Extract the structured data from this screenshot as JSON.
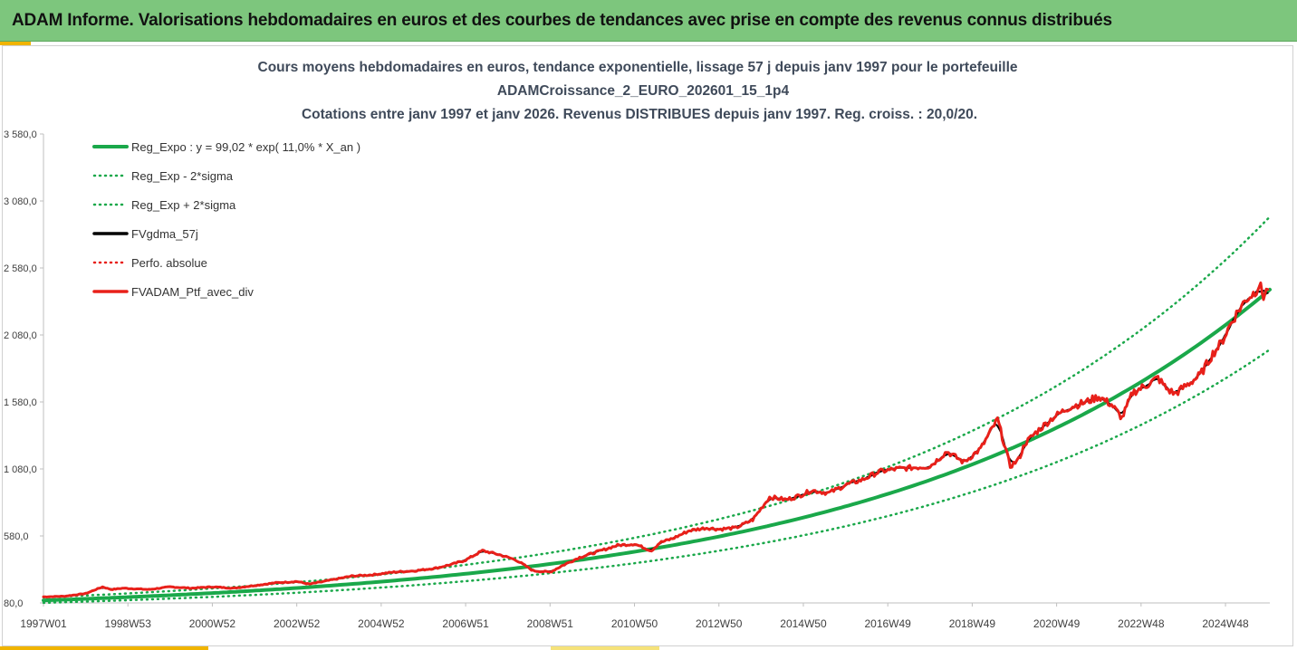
{
  "header": {
    "title": "ADAM Informe. Valorisations hebdomadaires en euros et des courbes de tendances avec prise en compte des revenus connus distribués"
  },
  "chart_data": {
    "type": "line",
    "title": "Cours moyens hebdomadaires  en euros, tendance exponentielle, lissage 57 j depuis janv 1997 pour le portefeuille",
    "title_line2": "ADAMCroissance_2_EURO_202601_15_1p4",
    "subtitle": "Cotations entre janv 1997 et janv 2026. Revenus DISTRIBUES depuis janv 1997. Reg. croiss. : 20,0/20.",
    "xlabel": "",
    "ylabel": "",
    "ylim": [
      80,
      3580
    ],
    "xlim": [
      1997.0,
      2026.05
    ],
    "yticks": [
      "80,0",
      "580,0",
      "1 080,0",
      "1 580,0",
      "2 080,0",
      "2 580,0",
      "3 080,0",
      "3 580,0"
    ],
    "ytick_values": [
      80,
      580,
      1080,
      1580,
      2080,
      2580,
      3080,
      3580
    ],
    "xticks": [
      "1997W01",
      "1998W53",
      "2000W52",
      "2002W52",
      "2004W52",
      "2006W51",
      "2008W51",
      "2010W50",
      "2012W50",
      "2014W50",
      "2016W49",
      "2018W49",
      "2020W49",
      "2022W48",
      "2024W48"
    ],
    "xtick_values": [
      1997.0,
      1999.0,
      2001.0,
      2003.0,
      2005.0,
      2007.0,
      2009.0,
      2011.0,
      2013.0,
      2015.0,
      2017.0,
      2019.0,
      2021.0,
      2023.0,
      2025.0
    ],
    "grid": false,
    "legend_position": "top-left",
    "regression": {
      "a": 99.02,
      "rate": 0.11,
      "sigma_low_factor": 0.815,
      "sigma_high_factor": 1.225
    },
    "series": [
      {
        "name": "Reg_Expo : y = 99,02 * exp( 11,0% *  X_an )",
        "style": "solid",
        "color": "#1aa84a",
        "width": 4,
        "formula": "reg"
      },
      {
        "name": "Reg_Exp - 2*sigma",
        "style": "dotted",
        "color": "#1aa84a",
        "width": 2.5,
        "formula": "low"
      },
      {
        "name": "Reg_Exp + 2*sigma",
        "style": "dotted",
        "color": "#1aa84a",
        "width": 2.5,
        "formula": "high"
      },
      {
        "name": "FVgdma_57j",
        "style": "solid",
        "color": "#000000",
        "width": 2,
        "source": "smooth"
      },
      {
        "name": "Perfo. absolue",
        "style": "dotted",
        "color": "#e8201a",
        "width": 2.5,
        "source": "none"
      },
      {
        "name": "FVADAM_Ptf_avec_div",
        "style": "solid",
        "color": "#e8201a",
        "width": 3,
        "source": "raw"
      }
    ],
    "x": [
      1997.0,
      1997.5,
      1998.0,
      1998.4,
      1998.6,
      1998.9,
      1999.5,
      2000.0,
      2000.5,
      2001.0,
      2001.5,
      2002.0,
      2002.5,
      2003.0,
      2003.3,
      2003.8,
      2004.3,
      2004.8,
      2005.3,
      2005.8,
      2006.3,
      2006.7,
      2007.0,
      2007.4,
      2007.8,
      2008.2,
      2008.6,
      2009.0,
      2009.3,
      2009.7,
      2010.2,
      2010.6,
      2011.0,
      2011.4,
      2011.6,
      2011.9,
      2012.3,
      2012.7,
      2013.0,
      2013.4,
      2013.8,
      2014.2,
      2014.6,
      2014.9,
      2015.2,
      2015.6,
      2016.0,
      2016.4,
      2016.8,
      2017.2,
      2017.6,
      2018.0,
      2018.4,
      2018.8,
      2019.2,
      2019.6,
      2019.9,
      2020.1,
      2020.25,
      2020.5,
      2020.9,
      2021.3,
      2021.7,
      2022.0,
      2022.3,
      2022.55,
      2022.8,
      2023.1,
      2023.4,
      2023.6,
      2023.8,
      2024.1,
      2024.4,
      2024.7,
      2024.9,
      2025.1,
      2025.3,
      2025.5,
      2025.7,
      2025.8,
      2025.9,
      2026.0
    ],
    "values": [
      125,
      130,
      150,
      200,
      180,
      190,
      180,
      200,
      190,
      200,
      190,
      210,
      230,
      240,
      220,
      250,
      280,
      290,
      310,
      320,
      340,
      370,
      400,
      470,
      440,
      400,
      320,
      310,
      360,
      420,
      470,
      510,
      520,
      470,
      530,
      560,
      620,
      640,
      630,
      640,
      700,
      870,
      850,
      880,
      920,
      900,
      960,
      1000,
      1060,
      1080,
      1090,
      1100,
      1210,
      1130,
      1230,
      1450,
      1100,
      1150,
      1270,
      1350,
      1460,
      1540,
      1580,
      1620,
      1560,
      1460,
      1650,
      1700,
      1760,
      1680,
      1640,
      1710,
      1780,
      1940,
      2020,
      2150,
      2260,
      2350,
      2400,
      2460,
      2370,
      2420
    ]
  }
}
